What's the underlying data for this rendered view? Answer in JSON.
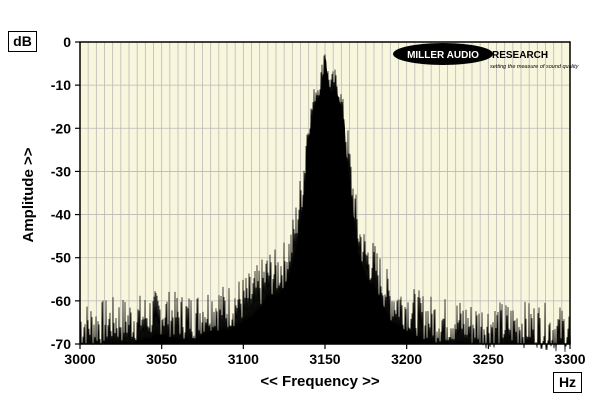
{
  "chart_data": {
    "type": "area",
    "title": "",
    "ylabel": "Amplitude >>",
    "xlabel": "<< Frequency >>",
    "y_unit": "dB",
    "x_unit": "Hz",
    "xlim": [
      3000,
      3300
    ],
    "ylim": [
      -70,
      0
    ],
    "x_ticks": [
      3000,
      3050,
      3100,
      3150,
      3200,
      3250,
      3300
    ],
    "x_tick_labels": [
      "3000",
      "3050",
      "3100",
      "3150",
      "3200",
      "3250",
      "3300"
    ],
    "y_ticks": [
      0,
      -10,
      -20,
      -30,
      -40,
      -50,
      -60,
      -70
    ],
    "y_tick_labels": [
      "0",
      "-10",
      "-20",
      "-30",
      "-40",
      "-50",
      "-60",
      "-70"
    ],
    "grid": true,
    "colors": {
      "plot_background": "#f8f6dc",
      "fill": "#000000",
      "grid": "#b9b9b9"
    },
    "series": [
      {
        "x": [
          3000,
          3010,
          3020,
          3030,
          3040,
          3050,
          3060,
          3070,
          3080,
          3090,
          3100,
          3105,
          3110,
          3115,
          3120,
          3125,
          3130,
          3133,
          3136,
          3139,
          3142,
          3144,
          3146,
          3148,
          3150,
          3152,
          3154,
          3156,
          3158,
          3160,
          3163,
          3166,
          3170,
          3175,
          3180,
          3185,
          3190,
          3195,
          3200,
          3210,
          3220,
          3230,
          3240,
          3250,
          3260,
          3270,
          3280,
          3290,
          3300
        ],
        "y": [
          -62,
          -62,
          -61,
          -61,
          -60,
          -59,
          -60,
          -60,
          -58,
          -58,
          -56,
          -55,
          -53,
          -50,
          -50,
          -48,
          -43,
          -37,
          -30,
          -20,
          -14,
          -10,
          -9,
          -6,
          0,
          -7,
          -8,
          -7,
          -9,
          -12,
          -18,
          -28,
          -40,
          -46,
          -48,
          -52,
          -56,
          -57,
          -58,
          -60,
          -61,
          -61,
          -62,
          -62,
          -62,
          -62,
          -62,
          -63,
          -63
        ]
      }
    ],
    "logo": {
      "brand": "MILLER AUDIO RESEARCH",
      "tagline": "setting the measure of sound quality"
    }
  }
}
